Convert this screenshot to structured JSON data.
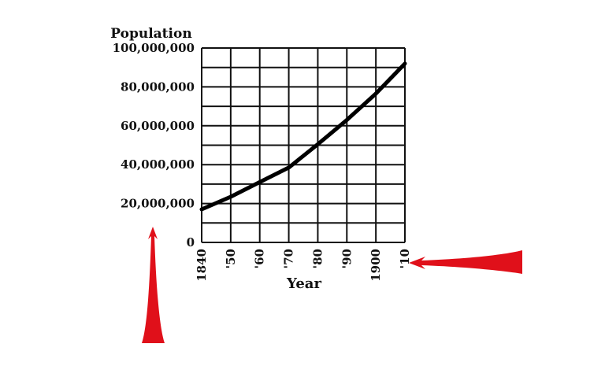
{
  "chart_data": {
    "type": "line",
    "ylabel": "Population",
    "xlabel": "Year",
    "x_tick_labels": [
      "1840",
      "'50",
      "'60",
      "'70",
      "'80",
      "'90",
      "1900",
      "'10"
    ],
    "y_tick_labels": [
      "0",
      "20,000,000",
      "40,000,000",
      "60,000,000",
      "80,000,000",
      "100,000,000"
    ],
    "x": [
      1840,
      1850,
      1860,
      1870,
      1880,
      1890,
      1900,
      1910
    ],
    "values": [
      17000000,
      23500000,
      31000000,
      38500000,
      50500000,
      63000000,
      76500000,
      92000000
    ],
    "xlim": [
      1840,
      1910
    ],
    "ylim": [
      0,
      100000000
    ],
    "grid": true,
    "line_color": "#000000",
    "annotation_color": "#e0101a"
  }
}
